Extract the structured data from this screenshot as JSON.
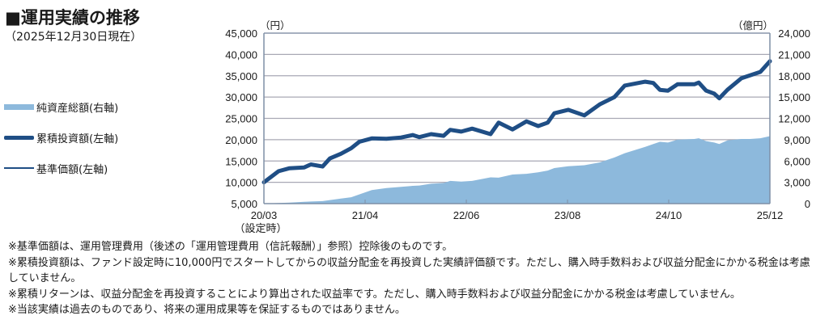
{
  "header": {
    "title": "■運用実績の推移",
    "as_of": "（2025年12月30日現在）"
  },
  "axes": {
    "left_unit": "（円）",
    "right_unit": "（億円）"
  },
  "legend": [
    {
      "label": "純資産総額(右軸)",
      "color": "#8db9dc",
      "style": "area"
    },
    {
      "label": "累積投資額(左軸)",
      "color": "#1f4e85",
      "style": "thick-line"
    },
    {
      "label": "基準価額(左軸)",
      "color": "#1f4e85",
      "style": "thin-line"
    }
  ],
  "notes": [
    "※基準価額は、運用管理費用（後述の「運用管理費用（信託報酬）」参照）控除後のものです。",
    "※累積投資額は、ファンド設定時に10,000円でスタートしてからの収益分配金を再投資した実績評価額です。ただし、購入時手数料および収益分配金にかかる税金は考慮していません。",
    "※累積リターンは、収益分配金を再投資することにより算出された収益率です。ただし、購入時手数料および収益分配金にかかる税金は考慮していません。",
    "※当該実績は過去のものであり、将来の運用成果等を保証するものではありません。"
  ],
  "colors": {
    "area": "#8db9dc",
    "line": "#1f4e85",
    "grid": "#a8a8b4",
    "axis": "#7f8fa6"
  },
  "chart_data": {
    "type": "line",
    "title": "運用実績の推移",
    "subtitle": "（2025年12月30日現在）",
    "xlabel": "",
    "ylabel_left": "円",
    "ylabel_right": "億円",
    "x_ticks": [
      "20/03\n（設定時）",
      "21/04",
      "22/06",
      "23/08",
      "24/10",
      "25/12"
    ],
    "x_tick_labels": [
      "20/03",
      "21/04",
      "22/06",
      "23/08",
      "24/10",
      "25/12"
    ],
    "x_tick_sublabel": "（設定時）",
    "y_left_ticks": [
      5000,
      10000,
      15000,
      20000,
      25000,
      30000,
      35000,
      40000,
      45000
    ],
    "y_left_tick_labels": [
      "5,000",
      "10,000",
      "15,000",
      "20,000",
      "25,000",
      "30,000",
      "35,000",
      "40,000",
      "45,000"
    ],
    "ylim_left": [
      5000,
      45000
    ],
    "y_right_ticks": [
      0,
      3000,
      6000,
      9000,
      12000,
      15000,
      18000,
      21000,
      24000
    ],
    "y_right_tick_labels": [
      "0",
      "3,000",
      "6,000",
      "9,000",
      "12,000",
      "15,000",
      "18,000",
      "21,000",
      "24,000"
    ],
    "ylim_right": [
      0,
      24000
    ],
    "grid": true,
    "legend_position": "left",
    "x_months_from_start": [
      0,
      2,
      3.5,
      5.5,
      6.4,
      8,
      9,
      10.5,
      11.9,
      13,
      14.7,
      16.7,
      18.7,
      20.3,
      21.2,
      22.8,
      24.5,
      25.4,
      26.9,
      28.4,
      30.9,
      32,
      33.9,
      35.8,
      37.4,
      38.7,
      39.6,
      41.5,
      43.7,
      45.8,
      47.8,
      49.2,
      52,
      53.1,
      54,
      55.1,
      56.4,
      58.7,
      59.3,
      60.3,
      61.4,
      62.1,
      63.2,
      65.1,
      66.3,
      67.7,
      69
    ],
    "series": [
      {
        "name": "累積投資額(左軸)",
        "axis": "left",
        "style": "thick-line",
        "values": [
          10000,
          12600,
          13300,
          13500,
          14200,
          13700,
          15600,
          16700,
          18000,
          19500,
          20300,
          20200,
          20500,
          21100,
          20600,
          21300,
          20900,
          22300,
          21900,
          22600,
          21300,
          24000,
          22400,
          24300,
          23200,
          24000,
          26200,
          27000,
          25700,
          28300,
          30000,
          32700,
          33600,
          33300,
          31700,
          31500,
          33000,
          33000,
          33400,
          31500,
          30800,
          29700,
          31700,
          34400,
          35100,
          35900,
          38400
        ]
      },
      {
        "name": "基準価額(左軸)",
        "axis": "left",
        "style": "thin-line",
        "values": [
          10000,
          12600,
          13300,
          13500,
          14200,
          13700,
          15600,
          16700,
          18000,
          19500,
          20300,
          20200,
          20500,
          21100,
          20600,
          21300,
          20900,
          22300,
          21900,
          22600,
          21300,
          24000,
          22400,
          24300,
          23200,
          24000,
          26200,
          27000,
          25700,
          28300,
          30000,
          32700,
          33600,
          33300,
          31700,
          31500,
          33000,
          33000,
          33400,
          31500,
          30800,
          29700,
          31700,
          34400,
          35100,
          35900,
          38400
        ]
      },
      {
        "name": "純資産総額(右軸)",
        "axis": "right",
        "style": "area",
        "values": [
          0,
          80,
          150,
          250,
          300,
          350,
          500,
          700,
          900,
          1300,
          1900,
          2200,
          2350,
          2500,
          2550,
          2800,
          2900,
          3200,
          3100,
          3200,
          3700,
          3650,
          4100,
          4200,
          4400,
          4650,
          5000,
          5250,
          5400,
          5800,
          6500,
          7100,
          8000,
          8400,
          8700,
          8600,
          9000,
          9100,
          9200,
          8800,
          8600,
          8400,
          8900,
          9100,
          9100,
          9200,
          9500
        ]
      }
    ]
  }
}
